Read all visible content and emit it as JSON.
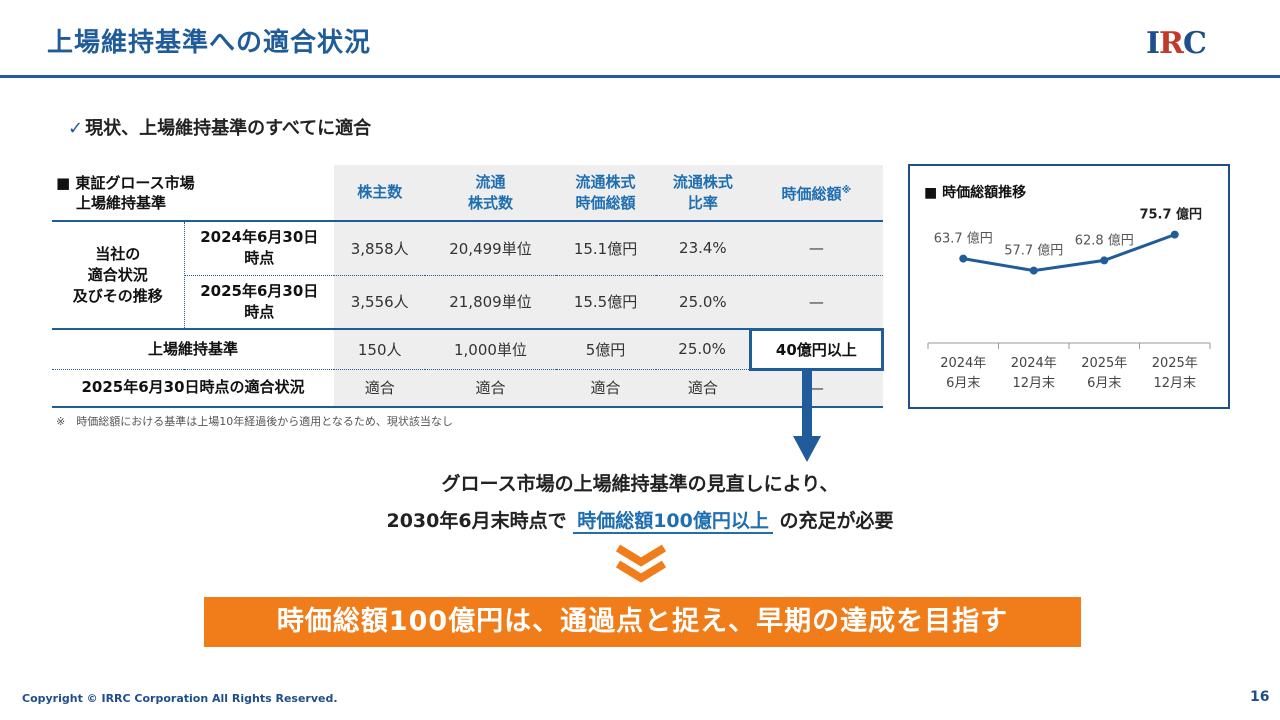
{
  "header": {
    "title": "上場維持基準への適合状況",
    "logo_prefix": "I",
    "logo_r": "R",
    "logo_suffix": "C"
  },
  "status": {
    "check": "✓",
    "text": "現状、上場維持基準のすべてに適合"
  },
  "table": {
    "corner_line1": "■ 東証グロース市場",
    "corner_line2": "上場維持基準",
    "headers": [
      {
        "line1": "株主数",
        "line2": ""
      },
      {
        "line1": "流通",
        "line2": "株式数"
      },
      {
        "line1": "流通株式",
        "line2": "時価総額"
      },
      {
        "line1": "流通株式",
        "line2": "比率"
      },
      {
        "line1": "時価総額",
        "line2": "",
        "sup": "※"
      }
    ],
    "group_label_line1": "当社の",
    "group_label_line2": "適合状況",
    "group_label_line3": "及びその推移",
    "rows": [
      {
        "label_line1": "2024年6月30日",
        "label_line2": "時点",
        "values": [
          "3,858人",
          "20,499単位",
          "15.1億円",
          "23.4%",
          "—"
        ]
      },
      {
        "label_line1": "2025年6月30日",
        "label_line2": "時点",
        "values": [
          "3,556人",
          "21,809単位",
          "15.5億円",
          "25.0%",
          "—"
        ]
      }
    ],
    "criteria": {
      "label": "上場維持基準",
      "values": [
        "150人",
        "1,000単位",
        "5億円",
        "25.0%",
        "40億円以上"
      ]
    },
    "compliance": {
      "label": "2025年6月30日時点の適合状況",
      "values": [
        "適合",
        "適合",
        "適合",
        "適合",
        "—"
      ]
    }
  },
  "note": "※　時価総額における基準は上場10年経過後から適用となるため、現状該当なし",
  "chart_data": {
    "type": "line",
    "title": "■ 時価総額推移",
    "categories": [
      "2024年\n6月末",
      "2024年\n12月末",
      "2025年\n6月末",
      "2025年\n12月末"
    ],
    "category_lines": [
      [
        "2024年",
        "6月末"
      ],
      [
        "2024年",
        "12月末"
      ],
      [
        "2025年",
        "6月末"
      ],
      [
        "2025年",
        "12月末"
      ]
    ],
    "values": [
      63.7,
      57.7,
      62.8,
      75.7
    ],
    "data_labels": [
      "63.7 億円",
      "57.7 億円",
      "62.8 億円",
      "75.7 億円"
    ],
    "unit": "億円",
    "color": "#1f5c99"
  },
  "message": {
    "line1": "グロース市場の上場維持基準の見直しにより、",
    "line2_pre": "2030年6月末時点で",
    "line2_em": "時価総額100億円以上",
    "line2_post": "の充足が必要"
  },
  "banner": "時価総額100億円は、通過点と捉え、早期の達成を目指す",
  "footer": {
    "copyright": "Copyright © IRRC Corporation All Rights Reserved.",
    "page": "16"
  },
  "colors": {
    "primary": "#1f5c99",
    "accent": "#f07d1a"
  }
}
